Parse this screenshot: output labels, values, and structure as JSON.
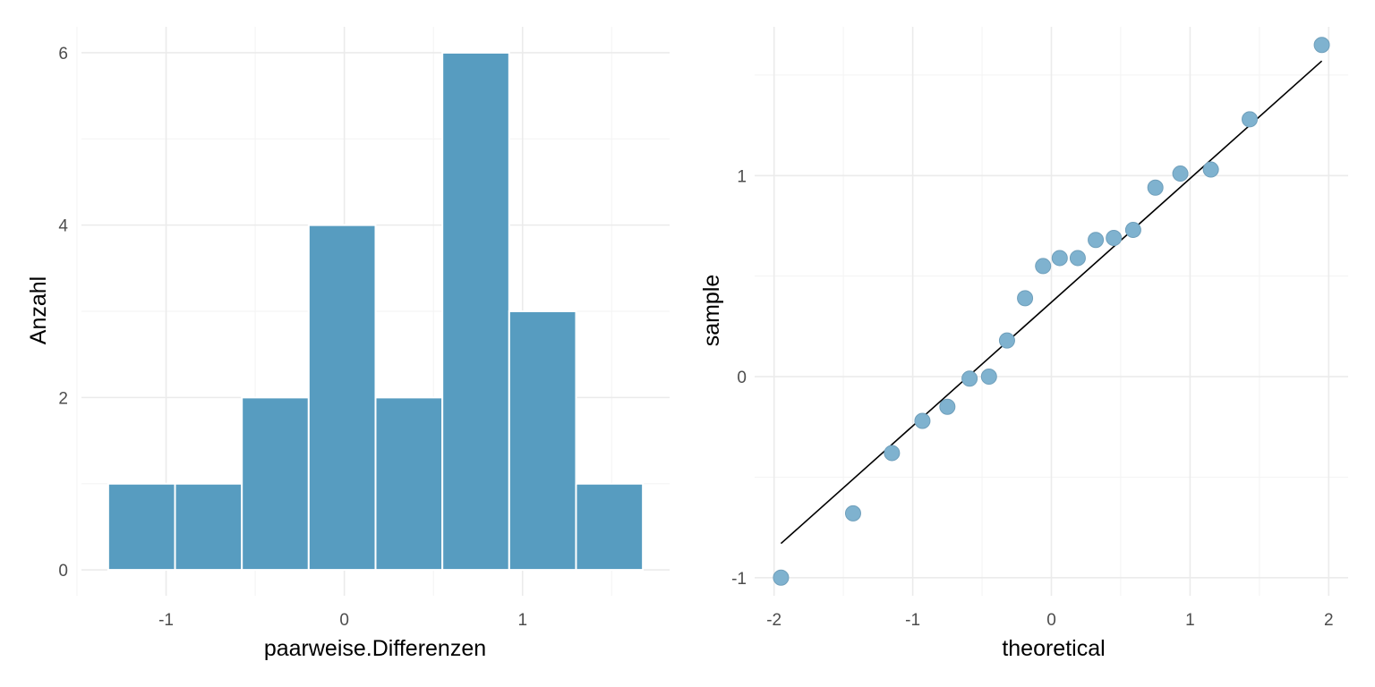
{
  "colors": {
    "bar_fill": "#579cc0",
    "bar_outline": "#ffffff",
    "point_fill": "#7fb2cf",
    "point_edge": "#6f9fbb",
    "line": "#000000",
    "grid": "#ebebeb",
    "tick_text": "#4d4d4d"
  },
  "chart_data": [
    {
      "type": "bar",
      "subtype": "histogram",
      "xlabel": "paarweise.Differenzen",
      "ylabel": "Anzahl",
      "bin_edges": [
        -1.325,
        -0.95,
        -0.575,
        -0.2,
        0.175,
        0.55,
        0.925,
        1.3,
        1.675
      ],
      "values": [
        1,
        1,
        2,
        4,
        2,
        6,
        3,
        1
      ],
      "xlim": [
        -1.475,
        1.825
      ],
      "ylim": [
        -0.3,
        6.3
      ],
      "xticks": [
        -1,
        0,
        1
      ],
      "xtick_labels": [
        "-1",
        "0",
        "1"
      ],
      "yticks": [
        0,
        2,
        4,
        6
      ],
      "ytick_labels": [
        "0",
        "2",
        "4",
        "6"
      ],
      "grid": true,
      "legend": "none"
    },
    {
      "type": "scatter",
      "subtype": "qq",
      "xlabel": "theoretical",
      "ylabel": "sample",
      "points": [
        {
          "x": -1.95,
          "y": -1.0
        },
        {
          "x": -1.43,
          "y": -0.68
        },
        {
          "x": -1.15,
          "y": -0.38
        },
        {
          "x": -0.93,
          "y": -0.22
        },
        {
          "x": -0.75,
          "y": -0.15
        },
        {
          "x": -0.59,
          "y": -0.01
        },
        {
          "x": -0.45,
          "y": 0.0
        },
        {
          "x": -0.32,
          "y": 0.18
        },
        {
          "x": -0.19,
          "y": 0.39
        },
        {
          "x": -0.06,
          "y": 0.55
        },
        {
          "x": 0.06,
          "y": 0.59
        },
        {
          "x": 0.19,
          "y": 0.59
        },
        {
          "x": 0.32,
          "y": 0.68
        },
        {
          "x": 0.45,
          "y": 0.69
        },
        {
          "x": 0.59,
          "y": 0.73
        },
        {
          "x": 0.75,
          "y": 0.94
        },
        {
          "x": 0.93,
          "y": 1.01
        },
        {
          "x": 1.15,
          "y": 1.03
        },
        {
          "x": 1.43,
          "y": 1.28
        },
        {
          "x": 1.95,
          "y": 1.65
        }
      ],
      "reference_line": {
        "x": [
          -1.95,
          1.95
        ],
        "y": [
          -0.83,
          1.57
        ]
      },
      "xlim": [
        -2.14,
        2.14
      ],
      "ylim": [
        -1.09,
        1.74
      ],
      "xticks": [
        -2,
        -1,
        0,
        1,
        2
      ],
      "xtick_labels": [
        "-2",
        "-1",
        "0",
        "1",
        "2"
      ],
      "yticks": [
        -1,
        0,
        1
      ],
      "ytick_labels": [
        "-1",
        "0",
        "1"
      ],
      "grid": true,
      "legend": "none"
    }
  ]
}
